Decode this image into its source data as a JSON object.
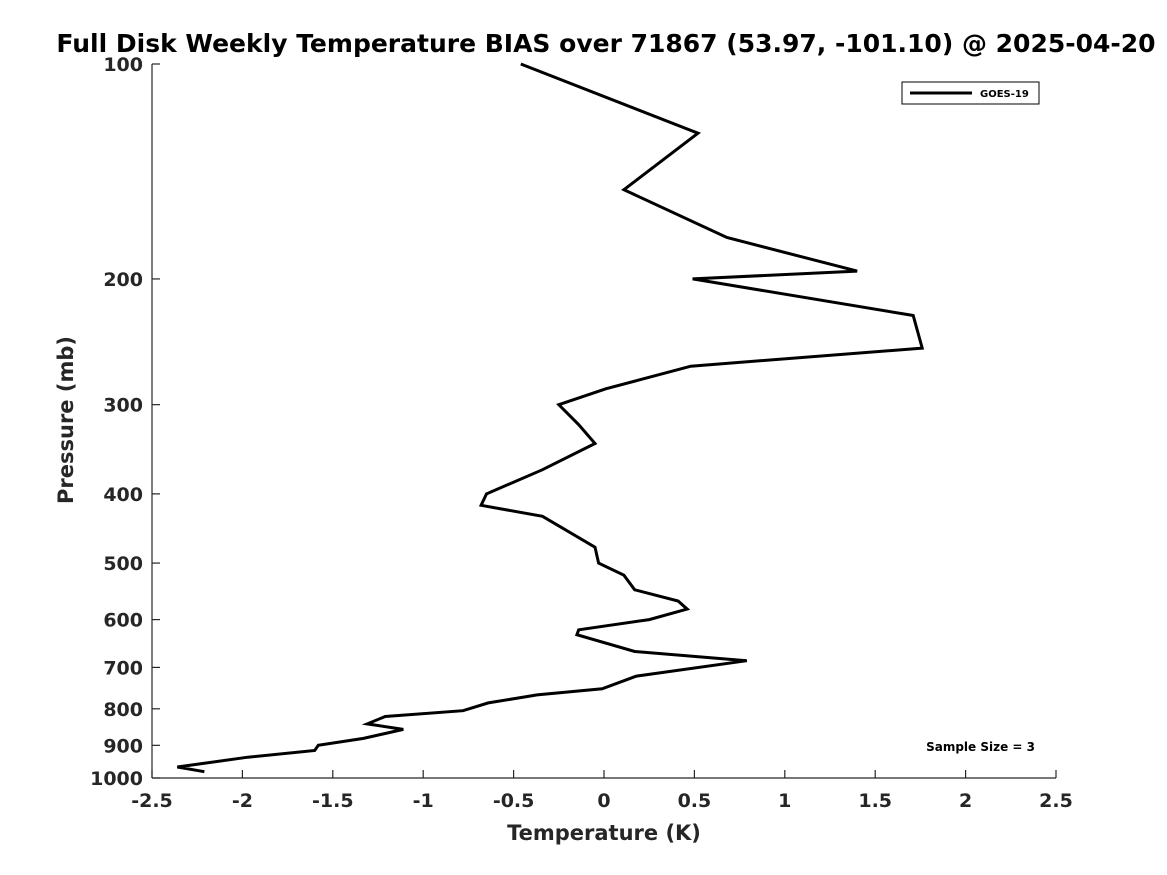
{
  "chart_data": {
    "type": "line",
    "title": "Full Disk Weekly Temperature BIAS over 71867 (53.97, -101.10) @ 2025-04-20",
    "xlabel": "Temperature (K)",
    "ylabel": "Pressure (mb)",
    "xlim": [
      -2.5,
      2.5
    ],
    "ylim": [
      100,
      1000
    ],
    "y_scale": "log",
    "y_reversed": true,
    "grid": false,
    "legend_position": "top-right",
    "x_ticks": [
      -2.5,
      -2,
      -1.5,
      -1,
      -0.5,
      0,
      0.5,
      1,
      1.5,
      2,
      2.5
    ],
    "x_tick_labels": [
      "-2.5",
      "-2",
      "-1.5",
      "-1",
      "-0.5",
      "0",
      "0.5",
      "1",
      "1.5",
      "2",
      "2.5"
    ],
    "y_ticks": [
      100,
      200,
      300,
      400,
      500,
      600,
      700,
      800,
      900,
      1000
    ],
    "y_tick_labels": [
      "100",
      "200",
      "300",
      "400",
      "500",
      "600",
      "700",
      "800",
      "900",
      "1000"
    ],
    "annotation": "Sample Size = 3",
    "series": [
      {
        "name": "GOES-19",
        "color": "#000000",
        "points": [
          {
            "t": -0.46,
            "p": 100
          },
          {
            "t": 0.52,
            "p": 125
          },
          {
            "t": 0.11,
            "p": 150
          },
          {
            "t": 0.68,
            "p": 175
          },
          {
            "t": 1.4,
            "p": 195
          },
          {
            "t": 0.49,
            "p": 200
          },
          {
            "t": 1.71,
            "p": 225
          },
          {
            "t": 1.76,
            "p": 250
          },
          {
            "t": 0.48,
            "p": 265
          },
          {
            "t": 0.01,
            "p": 285
          },
          {
            "t": -0.25,
            "p": 300
          },
          {
            "t": -0.14,
            "p": 320
          },
          {
            "t": -0.05,
            "p": 340
          },
          {
            "t": -0.34,
            "p": 370
          },
          {
            "t": -0.65,
            "p": 400
          },
          {
            "t": -0.68,
            "p": 415
          },
          {
            "t": -0.34,
            "p": 430
          },
          {
            "t": -0.05,
            "p": 475
          },
          {
            "t": -0.03,
            "p": 500
          },
          {
            "t": 0.11,
            "p": 520
          },
          {
            "t": 0.17,
            "p": 545
          },
          {
            "t": 0.41,
            "p": 565
          },
          {
            "t": 0.46,
            "p": 580
          },
          {
            "t": 0.25,
            "p": 600
          },
          {
            "t": -0.14,
            "p": 620
          },
          {
            "t": -0.15,
            "p": 630
          },
          {
            "t": 0.17,
            "p": 665
          },
          {
            "t": 0.79,
            "p": 685
          },
          {
            "t": 0.18,
            "p": 720
          },
          {
            "t": -0.01,
            "p": 750
          },
          {
            "t": -0.37,
            "p": 765
          },
          {
            "t": -0.64,
            "p": 785
          },
          {
            "t": -0.78,
            "p": 805
          },
          {
            "t": -1.21,
            "p": 820
          },
          {
            "t": -1.31,
            "p": 840
          },
          {
            "t": -1.11,
            "p": 855
          },
          {
            "t": -1.33,
            "p": 880
          },
          {
            "t": -1.58,
            "p": 900
          },
          {
            "t": -1.6,
            "p": 915
          },
          {
            "t": -1.97,
            "p": 935
          },
          {
            "t": -2.36,
            "p": 965
          },
          {
            "t": -2.21,
            "p": 980
          }
        ]
      }
    ]
  }
}
